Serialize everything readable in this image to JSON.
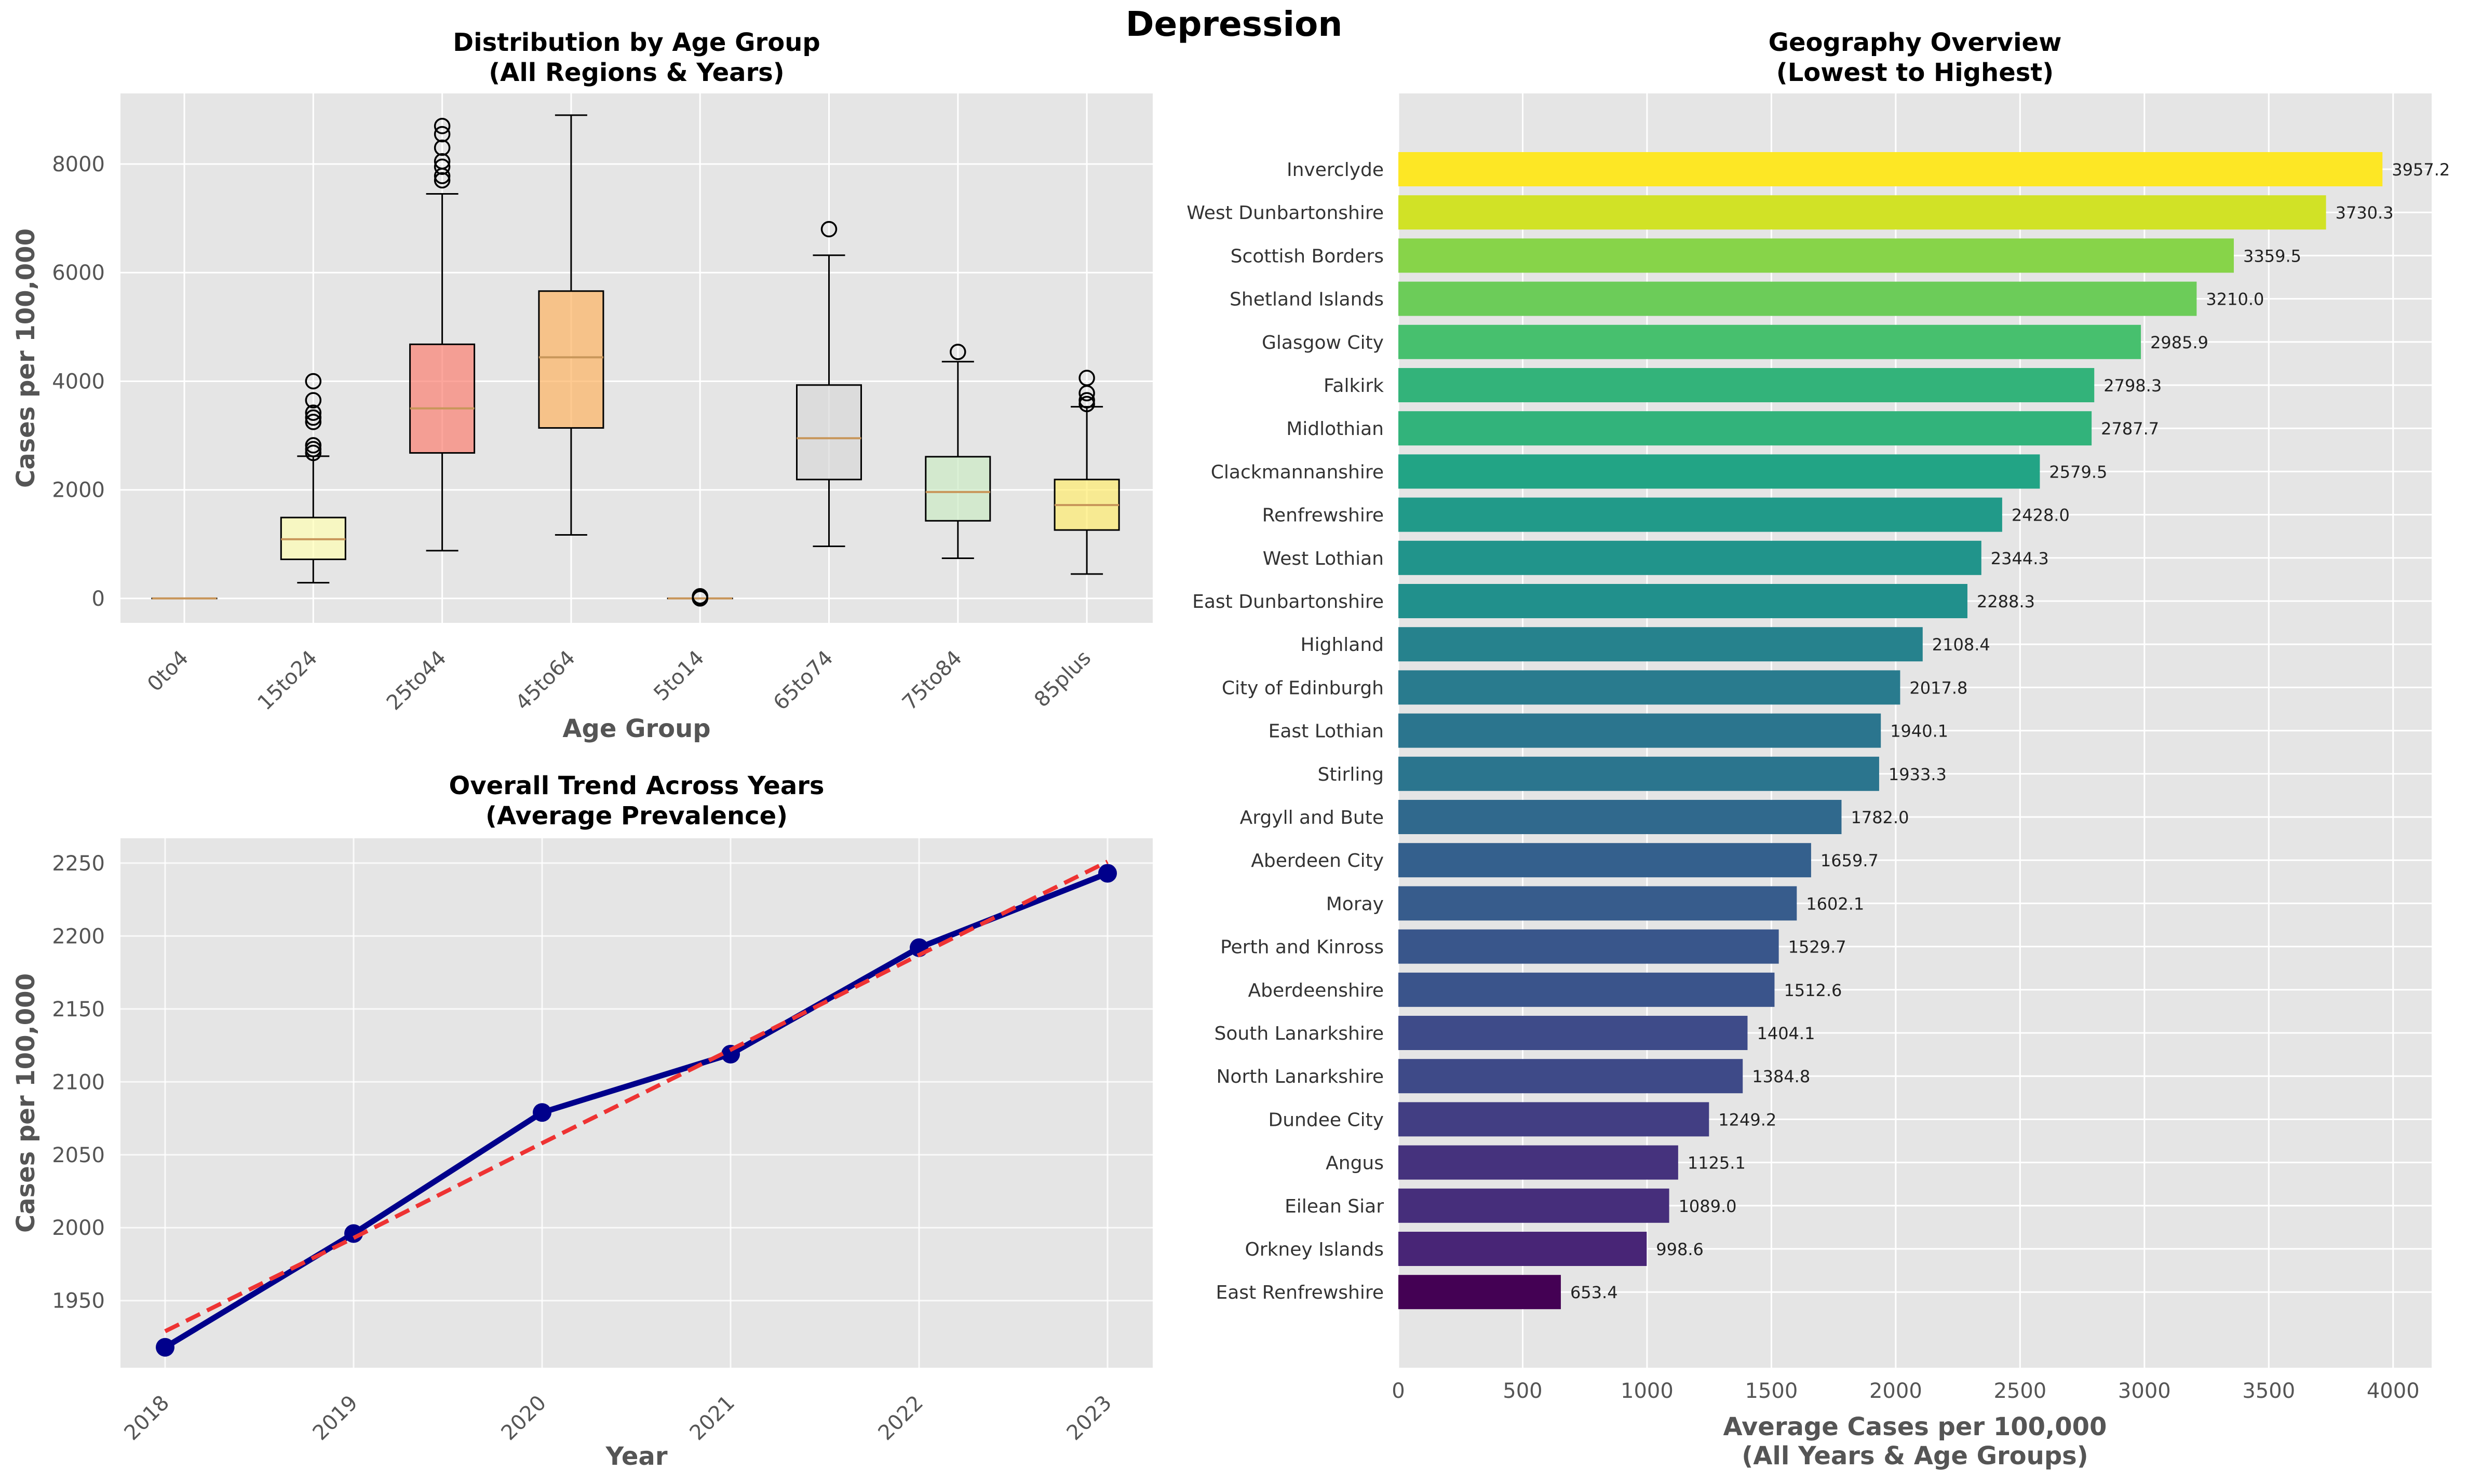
{
  "suptitle": "Depression",
  "chart_data": [
    {
      "type": "box",
      "title": "Distribution by Age Group\n(All Regions & Years)",
      "xlabel": "Age Group",
      "ylabel": "Cases per 100,000",
      "ylim": [
        -450,
        9300
      ],
      "yticks": [
        0,
        2000,
        4000,
        6000,
        8000
      ],
      "categories": [
        "0to4",
        "15to24",
        "25to44",
        "45to64",
        "5to14",
        "65to74",
        "75to84",
        "85plus"
      ],
      "colors": [
        "#ffd700",
        "#ffffb3",
        "#fb8072",
        "#fdb462",
        "#bebada",
        "#d9d9d9",
        "#ccebc5",
        "#ffed6f"
      ],
      "boxes": [
        {
          "whislo": 0,
          "q1": 0,
          "med": 0,
          "q3": 0,
          "whishi": 0,
          "fliers": []
        },
        {
          "whislo": 290,
          "q1": 720,
          "med": 1090,
          "q3": 1490,
          "whishi": 2620,
          "fliers": [
            2680,
            2750,
            2820,
            3250,
            3330,
            3420,
            3650,
            4000
          ]
        },
        {
          "whislo": 880,
          "q1": 2680,
          "med": 3500,
          "q3": 4680,
          "whishi": 7450,
          "fliers": [
            7700,
            7780,
            7950,
            8050,
            8300,
            8550,
            8700
          ]
        },
        {
          "whislo": 1170,
          "q1": 3140,
          "med": 4440,
          "q3": 5660,
          "whishi": 8900,
          "fliers": []
        },
        {
          "whislo": 0,
          "q1": 0,
          "med": 0,
          "q3": 0,
          "whishi": 0,
          "fliers": [
            0,
            20,
            40
          ]
        },
        {
          "whislo": 960,
          "q1": 2190,
          "med": 2950,
          "q3": 3930,
          "whishi": 6320,
          "fliers": [
            6800
          ]
        },
        {
          "whislo": 740,
          "q1": 1430,
          "med": 1960,
          "q3": 2610,
          "whishi": 4360,
          "fliers": [
            4540
          ]
        },
        {
          "whislo": 450,
          "q1": 1260,
          "med": 1720,
          "q3": 2190,
          "whishi": 3530,
          "fliers": [
            3580,
            3650,
            3780,
            4060
          ]
        }
      ]
    },
    {
      "type": "line",
      "title": "Overall Trend Across Years\n(Average Prevalence)",
      "xlabel": "Year",
      "ylabel": "Cases per 100,000",
      "x": [
        2018,
        2019,
        2020,
        2021,
        2022,
        2023
      ],
      "xticks": [
        "2018",
        "2019",
        "2020",
        "2021",
        "2022",
        "2023"
      ],
      "ylim": [
        1904,
        2267
      ],
      "yticks": [
        1950,
        2000,
        2050,
        2100,
        2150,
        2200,
        2250
      ],
      "series": [
        {
          "values": [
            1918,
            1996,
            2079,
            2119,
            2192,
            2243
          ],
          "color": "#00008b",
          "style": "solid-markers"
        },
        {
          "values": [
            1929,
            1993,
            2058,
            2122,
            2187,
            2251
          ],
          "color": "#ee3333",
          "style": "dashed"
        }
      ]
    },
    {
      "type": "barh",
      "title": "Geography Overview\n(Lowest to Highest)",
      "xlabel": "Average Cases per 100,000\n(All Years & Age Groups)",
      "ylabel": "",
      "xlim": [
        0,
        4155
      ],
      "xticks": [
        0,
        500,
        1000,
        1500,
        2000,
        2500,
        3000,
        3500,
        4000
      ],
      "categories": [
        "Inverclyde",
        "West Dunbartonshire",
        "Scottish Borders",
        "Shetland Islands",
        "Glasgow City",
        "Falkirk",
        "Midlothian",
        "Clackmannanshire",
        "Renfrewshire",
        "West Lothian",
        "East Dunbartonshire",
        "Highland",
        "City of Edinburgh",
        "East Lothian",
        "Stirling",
        "Argyll and Bute",
        "Aberdeen City",
        "Moray",
        "Perth and Kinross",
        "Aberdeenshire",
        "South Lanarkshire",
        "North Lanarkshire",
        "Dundee City",
        "Angus",
        "Eilean Siar",
        "Orkney Islands",
        "East Renfrewshire"
      ],
      "values": [
        3957.2,
        3730.3,
        3359.5,
        3210.0,
        2985.9,
        2798.3,
        2787.7,
        2579.5,
        2428.0,
        2344.3,
        2288.3,
        2108.4,
        2017.8,
        1940.1,
        1933.3,
        1782.0,
        1659.7,
        1602.1,
        1529.7,
        1512.6,
        1404.1,
        1384.8,
        1249.2,
        1125.1,
        1089.0,
        998.6,
        653.4
      ],
      "value_labels": [
        "3957.2",
        "3730.3",
        "3359.5",
        "3210.0",
        "2985.9",
        "2798.3",
        "2787.7",
        "2579.5",
        "2428.0",
        "2344.3",
        "2288.3",
        "2108.4",
        "2017.8",
        "1940.1",
        "1933.3",
        "1782.0",
        "1659.7",
        "1602.1",
        "1529.7",
        "1512.6",
        "1404.1",
        "1384.8",
        "1249.2",
        "1125.1",
        "1089.0",
        "998.6",
        "653.4"
      ],
      "colormap": "viridis"
    }
  ]
}
